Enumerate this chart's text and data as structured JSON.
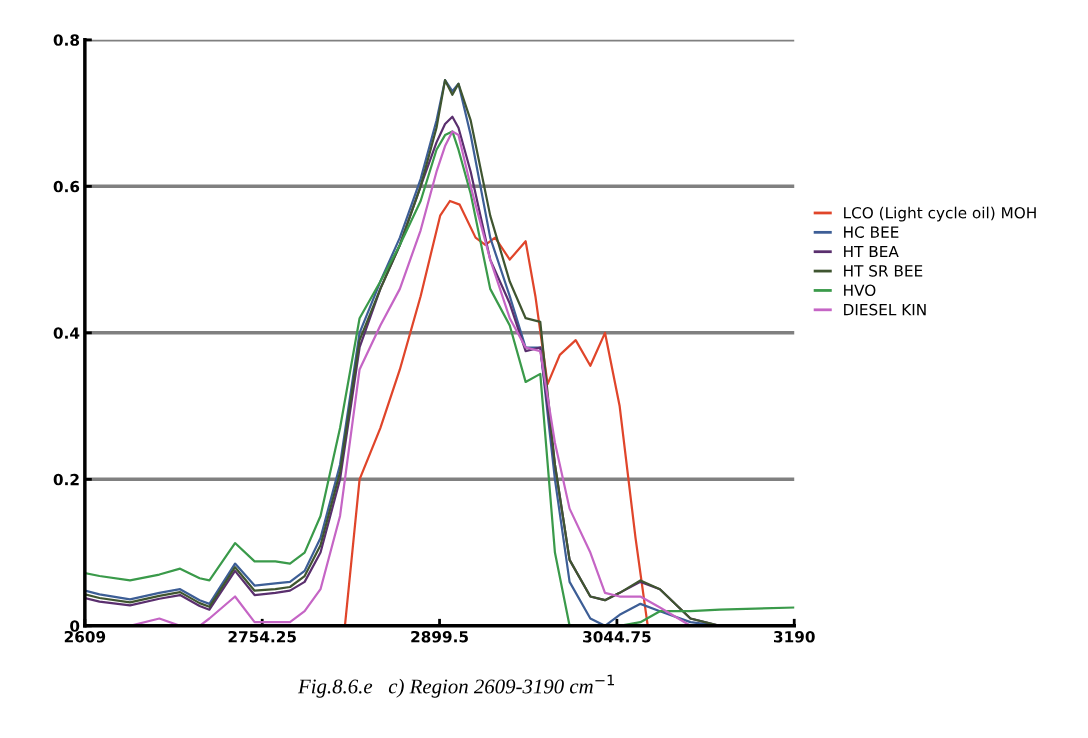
{
  "chart_data": {
    "type": "line",
    "x": [
      2609,
      2621,
      2646,
      2670,
      2687,
      2703,
      2711,
      2732,
      2748,
      2765,
      2777,
      2789,
      2802,
      2818,
      2834,
      2851,
      2867,
      2884,
      2897,
      2904,
      2910,
      2915,
      2925,
      2941,
      2957,
      2970,
      2982,
      2994,
      3006,
      3023,
      3035,
      3047,
      3064,
      3080,
      3105,
      3129,
      3190
    ],
    "series": [
      {
        "name": "LCO (Light cycle oil) MOH",
        "color": "#e0452a",
        "x": [
          2822,
          2834,
          2851,
          2867,
          2884,
          2900,
          2908,
          2916,
          2929,
          2937,
          2945,
          2957,
          2970,
          2978,
          2988,
          2998,
          3011,
          3023,
          3035,
          3047,
          3060,
          3070
        ],
        "values": [
          0.0,
          0.2,
          0.27,
          0.35,
          0.45,
          0.56,
          0.58,
          0.575,
          0.53,
          0.52,
          0.53,
          0.5,
          0.525,
          0.45,
          0.33,
          0.37,
          0.39,
          0.355,
          0.4,
          0.3,
          0.12,
          0.0
        ]
      },
      {
        "name": "HC BEE",
        "color": "#3d5e96",
        "values": [
          0.048,
          0.043,
          0.036,
          0.045,
          0.05,
          0.035,
          0.03,
          0.085,
          0.055,
          0.058,
          0.06,
          0.075,
          0.12,
          0.22,
          0.4,
          0.47,
          0.53,
          0.61,
          0.69,
          0.745,
          0.73,
          0.74,
          0.67,
          0.53,
          0.45,
          0.38,
          0.38,
          0.2,
          0.06,
          0.01,
          0.0,
          0.015,
          0.03,
          0.02,
          0.005,
          0.0,
          0.0
        ]
      },
      {
        "name": "HT BEA",
        "color": "#5a2f6e",
        "values": [
          0.038,
          0.033,
          0.028,
          0.037,
          0.042,
          0.027,
          0.022,
          0.075,
          0.042,
          0.045,
          0.048,
          0.06,
          0.1,
          0.2,
          0.38,
          0.46,
          0.52,
          0.6,
          0.66,
          0.685,
          0.695,
          0.68,
          0.62,
          0.5,
          0.44,
          0.375,
          0.38,
          0.22,
          0.09,
          0.04,
          0.035,
          0.045,
          0.06,
          0.05,
          0.01,
          0.0,
          0.0
        ]
      },
      {
        "name": "HT SR BEE",
        "color": "#3f5530",
        "values": [
          0.043,
          0.038,
          0.032,
          0.041,
          0.046,
          0.031,
          0.026,
          0.08,
          0.048,
          0.05,
          0.053,
          0.068,
          0.11,
          0.21,
          0.39,
          0.46,
          0.52,
          0.6,
          0.68,
          0.745,
          0.725,
          0.74,
          0.69,
          0.56,
          0.47,
          0.42,
          0.415,
          0.22,
          0.09,
          0.04,
          0.035,
          0.045,
          0.062,
          0.05,
          0.01,
          0.0,
          0.0
        ]
      },
      {
        "name": "HVO",
        "color": "#3a9a4a",
        "values": [
          0.072,
          0.068,
          0.062,
          0.07,
          0.078,
          0.065,
          0.062,
          0.113,
          0.088,
          0.088,
          0.085,
          0.1,
          0.15,
          0.27,
          0.42,
          0.47,
          0.52,
          0.58,
          0.65,
          0.67,
          0.675,
          0.65,
          0.59,
          0.46,
          0.41,
          0.333,
          0.344,
          0.1,
          0.0,
          0.0,
          0.0,
          0.0,
          0.005,
          0.02,
          0.02,
          0.022,
          0.025
        ]
      },
      {
        "name": "DIESEL KIN",
        "color": "#c565c5",
        "values": [
          0.0,
          0.0,
          0.0,
          0.01,
          0.0,
          0.0,
          0.01,
          0.04,
          0.005,
          0.005,
          0.005,
          0.02,
          0.05,
          0.15,
          0.35,
          0.41,
          0.46,
          0.54,
          0.62,
          0.655,
          0.675,
          0.67,
          0.6,
          0.5,
          0.42,
          0.38,
          0.375,
          0.25,
          0.16,
          0.1,
          0.045,
          0.04,
          0.04,
          0.025,
          0.0,
          0.0,
          0.0
        ]
      }
    ],
    "xlim": [
      2609,
      3190
    ],
    "xticks": [
      2609,
      2754.25,
      2899.5,
      3044.75,
      3190
    ],
    "ylim": [
      0,
      0.8
    ],
    "yticks": [
      0,
      0.2,
      0.4,
      0.6,
      0.8
    ],
    "grid": "y",
    "legend": "right",
    "marker": "none",
    "line_style": "solid",
    "annotations": [
      "Fig.8.6.e   c) Region 2609-3190 cm$^{−1}$"
    ]
  }
}
